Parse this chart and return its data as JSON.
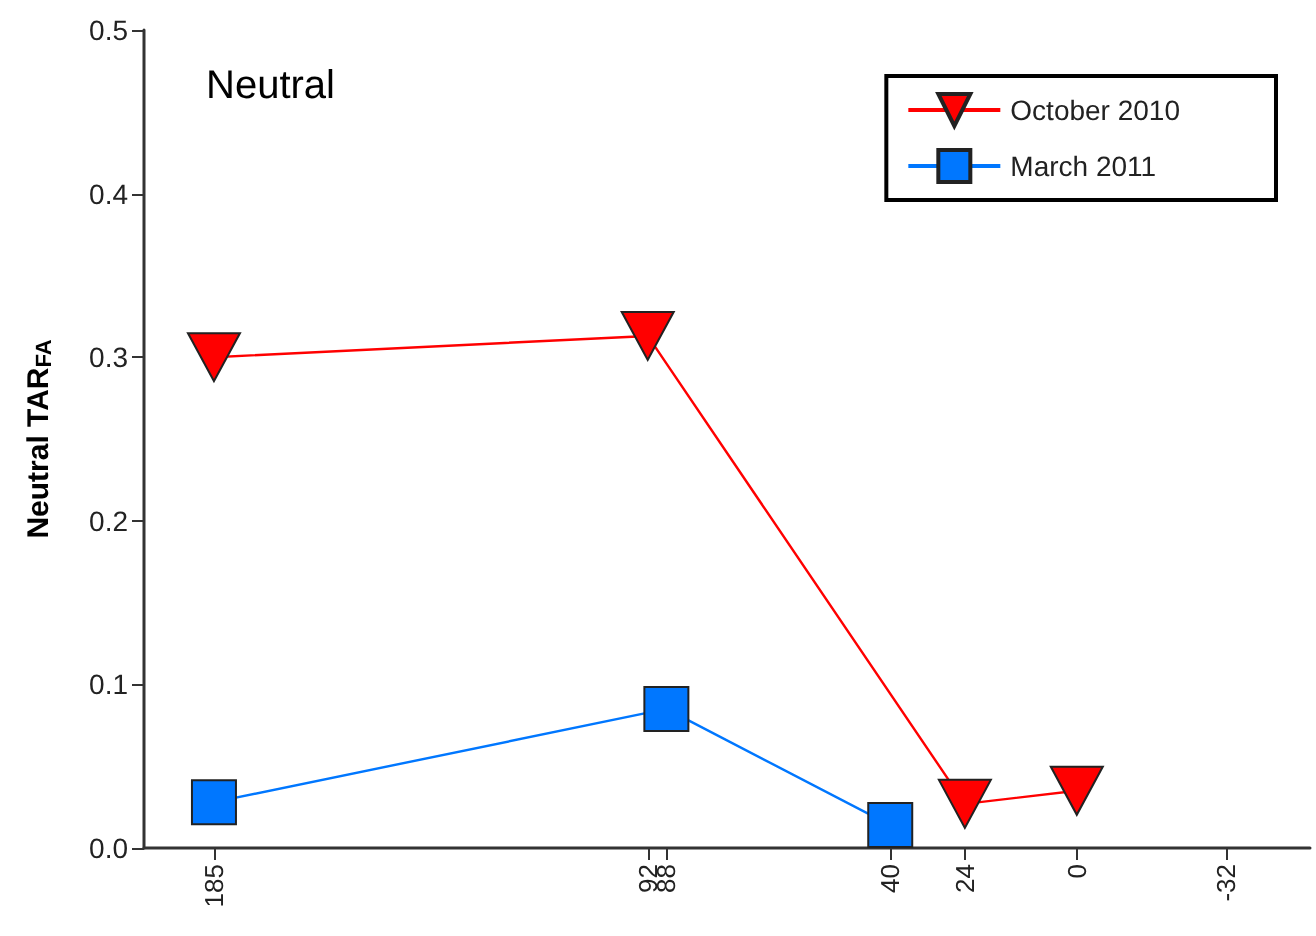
{
  "chart_data": {
    "type": "line",
    "title": "Neutral",
    "ylabel": "Neutral TAR$_{FA}$",
    "xlim": [
      200,
      -50
    ],
    "xticks": [
      185,
      92,
      88,
      40,
      24,
      0,
      -32
    ],
    "ylim": [
      0,
      0.5
    ],
    "yticks": [
      {
        "value": 0,
        "label": "0.0"
      },
      0.1,
      0.2,
      0.3,
      0.4,
      0.5
    ],
    "grid": false,
    "legend": "top right",
    "line_style": "solid",
    "series": [
      {
        "name": "October 2010",
        "color": "#ff0000",
        "marker": "triangle",
        "x": [
          185,
          92,
          24,
          0
        ],
        "values": [
          0.3,
          0.313,
          0.027,
          0.035
        ]
      },
      {
        "name": "March 2011",
        "color": "#0077ff",
        "marker": "square",
        "x": [
          185,
          88,
          40
        ],
        "values": [
          0.028,
          0.085,
          0.014
        ]
      }
    ]
  }
}
